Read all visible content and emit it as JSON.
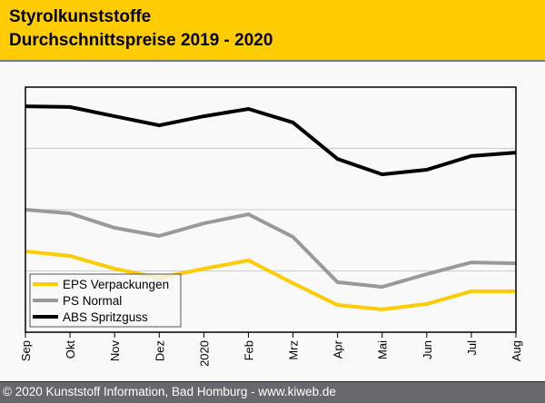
{
  "header": {
    "title_line1": "Styrolkunststoffe",
    "title_line2": "Durchschnittspreise 2019 - 2020"
  },
  "footer": {
    "copyright": "© 2020 Kunststoff Information, Bad Homburg - www.kiweb.de"
  },
  "colors": {
    "header_bg": "#fecc00",
    "footer_bg": "#67686c",
    "eps": "#fecc00",
    "ps": "#999999",
    "abs": "#000000",
    "grid": "#cccccc"
  },
  "chart_data": {
    "type": "line",
    "title": "Styrolkunststoffe Durchschnittspreise 2019 - 2020",
    "xlabel": "",
    "ylabel": "",
    "y_units": "relative index (no y-axis labels shown)",
    "ylim": [
      0,
      100
    ],
    "y_gridlines": [
      25,
      50,
      75
    ],
    "grid": true,
    "legend_position": "bottom-left",
    "categories": [
      "Sep",
      "Okt",
      "Nov",
      "Dez",
      "2020",
      "Feb",
      "Mrz",
      "Apr",
      "Mai",
      "Jun",
      "Jul",
      "Aug"
    ],
    "series": [
      {
        "name": "EPS Verpackungen",
        "color": "#fecc00",
        "values": [
          33.0,
          31.1,
          25.9,
          22.2,
          25.9,
          29.3,
          20.0,
          11.1,
          9.3,
          11.5,
          16.7,
          16.7
        ]
      },
      {
        "name": "PS Normal",
        "color": "#999999",
        "values": [
          50.0,
          48.5,
          42.6,
          39.3,
          44.4,
          48.1,
          38.9,
          20.4,
          18.5,
          23.7,
          28.5,
          28.1
        ]
      },
      {
        "name": "ABS Spritzguss",
        "color": "#000000",
        "values": [
          92.2,
          91.9,
          88.1,
          84.4,
          88.1,
          91.1,
          85.6,
          70.7,
          64.4,
          66.3,
          71.9,
          73.3
        ]
      }
    ]
  }
}
